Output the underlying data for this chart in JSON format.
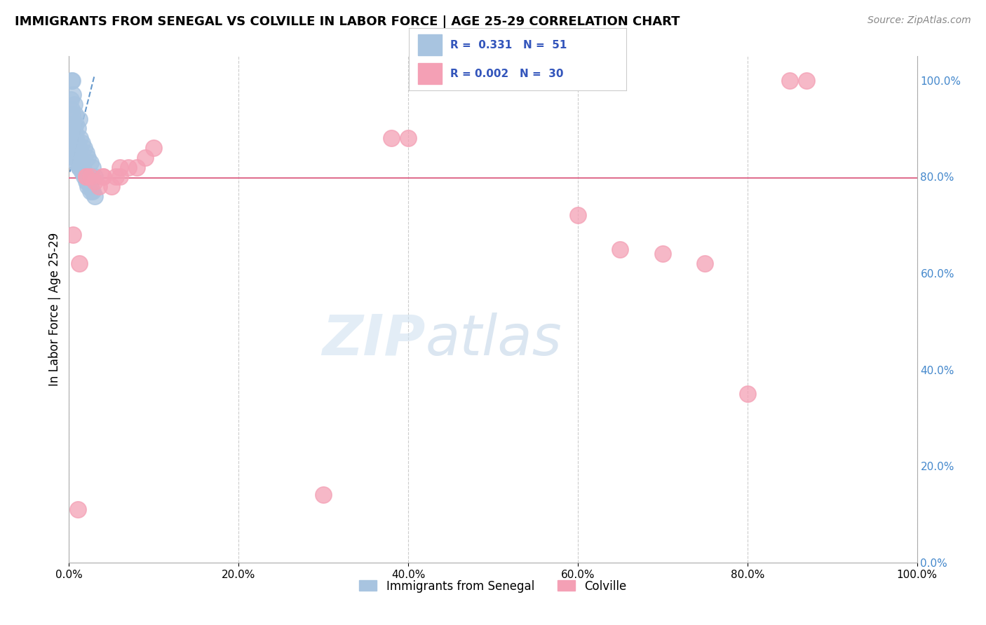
{
  "title": "IMMIGRANTS FROM SENEGAL VS COLVILLE IN LABOR FORCE | AGE 25-29 CORRELATION CHART",
  "source": "Source: ZipAtlas.com",
  "ylabel_left": "In Labor Force | Age 25-29",
  "xlim": [
    0.0,
    1.0
  ],
  "ylim": [
    0.0,
    1.05
  ],
  "legend_r1_label": "R =  0.331   N =  51",
  "legend_r2_label": "R = 0.002   N =  30",
  "blue_color": "#a8c4e0",
  "pink_color": "#f4a0b5",
  "trend_blue_color": "#6699cc",
  "trend_pink_color": "#e07090",
  "grid_color": "#cccccc",
  "background_color": "#ffffff",
  "watermark_zip": "ZIP",
  "watermark_atlas": "atlas",
  "right_tick_color": "#4488cc",
  "blue_scatter_x": [
    0.003,
    0.004,
    0.005,
    0.006,
    0.007,
    0.008,
    0.01,
    0.012,
    0.013,
    0.015,
    0.018,
    0.02,
    0.022,
    0.025,
    0.028,
    0.03,
    0.002,
    0.003,
    0.004,
    0.005,
    0.006,
    0.007,
    0.008,
    0.009,
    0.01,
    0.011,
    0.012,
    0.013,
    0.015,
    0.016,
    0.018,
    0.02,
    0.022,
    0.025,
    0.028,
    0.03,
    0.003,
    0.004,
    0.006,
    0.008,
    0.01,
    0.012,
    0.015,
    0.018,
    0.02,
    0.022,
    0.025,
    0.006,
    0.008,
    0.012,
    0.015
  ],
  "blue_scatter_y": [
    1.0,
    1.0,
    0.97,
    0.95,
    0.93,
    0.91,
    0.9,
    0.92,
    0.88,
    0.87,
    0.86,
    0.85,
    0.84,
    0.83,
    0.82,
    0.8,
    0.96,
    0.94,
    0.93,
    0.91,
    0.9,
    0.89,
    0.88,
    0.87,
    0.86,
    0.86,
    0.85,
    0.84,
    0.83,
    0.82,
    0.81,
    0.8,
    0.79,
    0.78,
    0.77,
    0.76,
    0.88,
    0.86,
    0.85,
    0.84,
    0.83,
    0.82,
    0.81,
    0.8,
    0.79,
    0.78,
    0.77,
    0.84,
    0.83,
    0.82,
    0.81
  ],
  "pink_scatter_x": [
    0.005,
    0.012,
    0.02,
    0.02,
    0.025,
    0.03,
    0.035,
    0.04,
    0.04,
    0.05,
    0.055,
    0.06,
    0.06,
    0.07,
    0.08,
    0.09,
    0.1,
    0.38,
    0.4,
    0.5,
    0.52,
    0.6,
    0.65,
    0.7,
    0.75,
    0.8,
    0.85,
    0.87,
    0.01,
    0.3
  ],
  "pink_scatter_y": [
    0.68,
    0.62,
    0.8,
    0.8,
    0.8,
    0.79,
    0.78,
    0.8,
    0.8,
    0.78,
    0.8,
    0.8,
    0.82,
    0.82,
    0.82,
    0.84,
    0.86,
    0.88,
    0.88,
    1.0,
    1.0,
    0.72,
    0.65,
    0.64,
    0.62,
    0.35,
    1.0,
    1.0,
    0.11,
    0.14
  ],
  "pink_hline_y": 0.797,
  "blue_trend_start_x": 0.001,
  "blue_trend_start_y": 0.81,
  "blue_trend_end_x": 0.03,
  "blue_trend_end_y": 1.01,
  "x_ticks": [
    0.0,
    0.2,
    0.4,
    0.6,
    0.8,
    1.0
  ],
  "x_tick_labels": [
    "0.0%",
    "20.0%",
    "40.0%",
    "60.0%",
    "80.0%",
    "100.0%"
  ],
  "y_ticks": [
    0.0,
    0.2,
    0.4,
    0.6,
    0.8,
    1.0
  ],
  "y_tick_labels": [
    "0.0%",
    "20.0%",
    "40.0%",
    "60.0%",
    "80.0%",
    "100.0%"
  ],
  "legend_blue_label": "Immigrants from Senegal",
  "legend_pink_label": "Colville"
}
